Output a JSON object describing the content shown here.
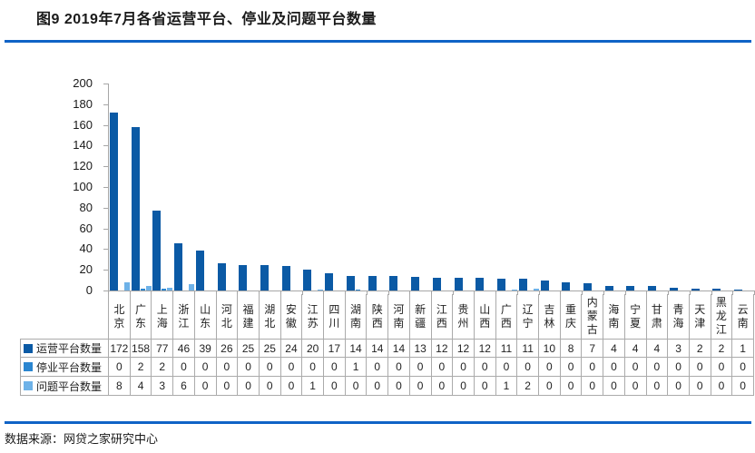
{
  "title": "图9  2019年7月各省运营平台、停业及问题平台数量",
  "source": "数据来源：网贷之家研究中心",
  "accent_color": "#1063C6",
  "axis_color": "#A6A6A6",
  "chart_data": {
    "type": "bar",
    "title": "2019年7月各省运营平台、停业及问题平台数量",
    "categories": [
      "北京",
      "广东",
      "上海",
      "浙江",
      "山东",
      "河北",
      "福建",
      "湖北",
      "安徽",
      "江苏",
      "四川",
      "湖南",
      "陕西",
      "河南",
      "新疆",
      "江西",
      "贵州",
      "山西",
      "广西",
      "辽宁",
      "吉林",
      "重庆",
      "内蒙古",
      "海南",
      "宁夏",
      "甘肃",
      "青海",
      "天津",
      "黑龙江",
      "云南"
    ],
    "series": [
      {
        "key": "operating",
        "name": "运营平台数量",
        "color": "#0B5AA5",
        "values": [
          172,
          158,
          77,
          46,
          39,
          26,
          25,
          25,
          24,
          20,
          17,
          14,
          14,
          14,
          13,
          12,
          12,
          12,
          11,
          11,
          10,
          8,
          7,
          4,
          4,
          4,
          3,
          2,
          2,
          1
        ]
      },
      {
        "key": "closed",
        "name": "停业平台数量",
        "color": "#2B86D0",
        "values": [
          0,
          2,
          2,
          0,
          0,
          0,
          0,
          0,
          0,
          0,
          0,
          1,
          0,
          0,
          0,
          0,
          0,
          0,
          0,
          0,
          0,
          0,
          0,
          0,
          0,
          0,
          0,
          0,
          0,
          0
        ]
      },
      {
        "key": "problem",
        "name": "问题平台数量",
        "color": "#6EB2E8",
        "values": [
          8,
          4,
          3,
          6,
          0,
          0,
          0,
          0,
          0,
          1,
          0,
          0,
          0,
          0,
          0,
          0,
          0,
          0,
          1,
          2,
          0,
          0,
          0,
          0,
          0,
          0,
          0,
          0,
          0,
          0
        ]
      }
    ],
    "xlabel": "",
    "ylabel": "",
    "ylim": [
      0,
      200
    ],
    "ytick_step": 20,
    "grid": false,
    "legend_position": "table-rows-left"
  }
}
